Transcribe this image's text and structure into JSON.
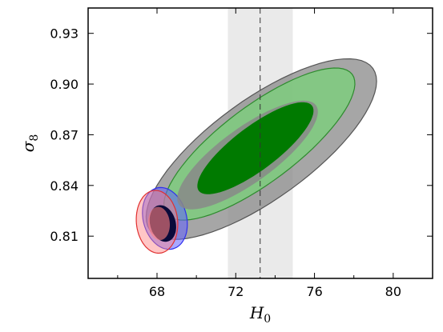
{
  "chart_data": {
    "type": "contour",
    "xlabel": "H",
    "xlabel_sub": "0",
    "ylabel": "σ",
    "ylabel_sub": "8",
    "xlim": [
      64.5,
      82
    ],
    "ylim": [
      0.785,
      0.945
    ],
    "x_ticks": [
      68,
      72,
      76,
      80
    ],
    "x_tick_labels": [
      "68",
      "72",
      "76",
      "80"
    ],
    "y_ticks": [
      0.81,
      0.84,
      0.87,
      0.9,
      0.93
    ],
    "y_tick_labels": [
      "0.81",
      "0.84",
      "0.87",
      "0.90",
      "0.93"
    ],
    "grid": false,
    "reference_band": {
      "x_center": 73.24,
      "x_low": 71.6,
      "x_high": 74.9,
      "color": "#d9d9d9"
    },
    "contours": [
      {
        "id": "gray",
        "color": "#888888",
        "edge": "#555555",
        "outer": {
          "cx": 73.3,
          "cy": 0.8615,
          "rx": 7.0,
          "ry": 0.0155,
          "angle_deg": 36,
          "opacity": 0.75
        },
        "inner": {
          "cx": 72.6,
          "cy": 0.858,
          "rx": 4.3,
          "ry": 0.0085,
          "angle_deg": 36,
          "opacity": 0.85
        }
      },
      {
        "id": "green",
        "color": "#7ccf7c",
        "edge": "#2e8b2e",
        "outer": {
          "cx": 73.2,
          "cy": 0.8645,
          "rx": 5.9,
          "ry": 0.0118,
          "angle_deg": 37,
          "opacity": 0.8
        },
        "inner": {
          "cx": 73.0,
          "cy": 0.862,
          "rx": 3.6,
          "ry": 0.0068,
          "angle_deg": 37,
          "opacity": 1.0,
          "fill": "#007a00"
        }
      },
      {
        "id": "blue",
        "color": "#6060ff",
        "edge": "#3030ee",
        "outer": {
          "cx": 68.4,
          "cy": 0.8205,
          "rx": 1.1,
          "ry": 0.0098,
          "angle_deg": 15,
          "opacity": 0.55
        },
        "inner": {
          "cx": 68.3,
          "cy": 0.8175,
          "rx": 0.65,
          "ry": 0.0058,
          "angle_deg": 15,
          "opacity": 1.0,
          "fill": "#0a0a3a"
        }
      },
      {
        "id": "red",
        "color": "#ff8080",
        "edge": "#e03030",
        "outer": {
          "cx": 68.0,
          "cy": 0.8185,
          "rx": 1.05,
          "ry": 0.0098,
          "angle_deg": 5,
          "opacity": 0.45
        },
        "inner": {
          "cx": 68.1,
          "cy": 0.8175,
          "rx": 0.55,
          "ry": 0.0052,
          "angle_deg": 5,
          "opacity": 0.6
        }
      }
    ]
  }
}
